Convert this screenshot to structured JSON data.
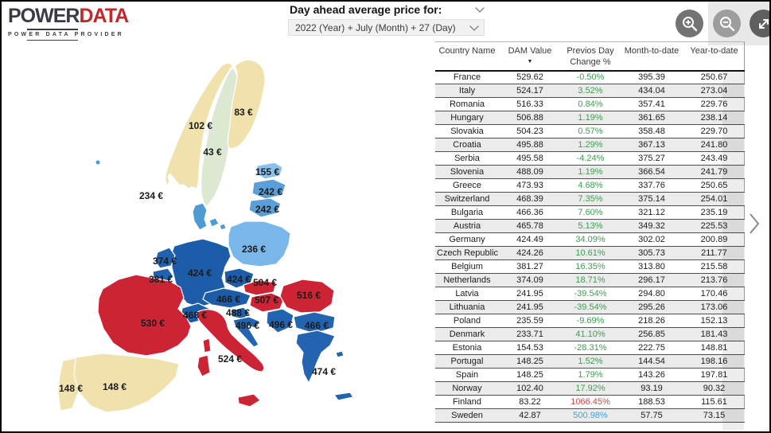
{
  "logo": {
    "brand_bold": "POWER",
    "brand_accent": "DATA",
    "tagline": "POWER DATA PROVIDER"
  },
  "slicer": {
    "title": "Day ahead average price for:",
    "value": "2022 (Year) + July (Month) + 27 (Day)"
  },
  "toolbar": {
    "icons": {
      "zoom_in": "magnifier-plus",
      "zoom_out": "magnifier-minus",
      "expand": "expand-arrows"
    }
  },
  "palette": {
    "green": "#3f9c51",
    "red": "#cd4a4a",
    "blue": "#3fa2dc"
  },
  "map": {
    "countries": [
      {
        "name": "Norway",
        "label": "102 €",
        "fill": "#f1e2ad"
      },
      {
        "name": "Sweden",
        "label": "43 €",
        "fill": "#dde8d2"
      },
      {
        "name": "Finland",
        "label": "83 €",
        "fill": "#f1e2ad"
      },
      {
        "name": "Denmark",
        "label": "234 €",
        "fill": "#4e9ad3"
      },
      {
        "name": "Estonia",
        "label": "155 €",
        "fill": "#8ac2ee"
      },
      {
        "name": "Latvia",
        "label": "242 €",
        "fill": "#5b9fd8"
      },
      {
        "name": "Lithuania",
        "label": "242 €",
        "fill": "#5b9fd8"
      },
      {
        "name": "Poland",
        "label": "236 €",
        "fill": "#79b7ea"
      },
      {
        "name": "Netherlands",
        "label": "374 €",
        "fill": "#2062ae"
      },
      {
        "name": "Belgium",
        "label": "381 €",
        "fill": "#2062ae"
      },
      {
        "name": "Germany",
        "label": "424 €",
        "fill": "#1d5ca8"
      },
      {
        "name": "Czech Republic",
        "label": "424 €",
        "fill": "#1d5ca8"
      },
      {
        "name": "Slovakia",
        "label": "504 €",
        "fill": "#cc2434"
      },
      {
        "name": "Hungary",
        "label": "507 €",
        "fill": "#cc2434"
      },
      {
        "name": "Romania",
        "label": "516 €",
        "fill": "#cc2434"
      },
      {
        "name": "Austria",
        "label": "466 €",
        "fill": "#1d5ca8"
      },
      {
        "name": "Switzerland",
        "label": "468 €",
        "fill": "#1d5ca8"
      },
      {
        "name": "Slovenia",
        "label": "488 €",
        "fill": "#2062ae"
      },
      {
        "name": "Croatia",
        "label": "496 €",
        "fill": "#2264b0"
      },
      {
        "name": "Serbia",
        "label": "496 €",
        "fill": "#2264b0"
      },
      {
        "name": "Bulgaria",
        "label": "466 €",
        "fill": "#2264b0"
      },
      {
        "name": "France",
        "label": "530 €",
        "fill": "#cc2434"
      },
      {
        "name": "Italy",
        "label": "524 €",
        "fill": "#cc2434"
      },
      {
        "name": "Greece",
        "label": "474 €",
        "fill": "#2264b0"
      },
      {
        "name": "Spain",
        "label": "148 €",
        "fill": "#f1e2ad"
      },
      {
        "name": "Portugal",
        "label": "148 €",
        "fill": "#f1e2ad"
      }
    ]
  },
  "table": {
    "columns": [
      "Country Name",
      "DAM Value",
      "Previos Day Change %",
      "Month-to-date",
      "Year-to-date"
    ],
    "sort_icon": "▼",
    "rows": [
      {
        "country": "France",
        "dam": "529.62",
        "change": "-0.50%",
        "change_color": "green",
        "mtd": "395.39",
        "ytd": "250.67"
      },
      {
        "country": "Italy",
        "dam": "524.17",
        "change": "3.52%",
        "change_color": "green",
        "mtd": "434.04",
        "ytd": "273.04"
      },
      {
        "country": "Romania",
        "dam": "516.33",
        "change": "0.84%",
        "change_color": "green",
        "mtd": "357.41",
        "ytd": "229.76"
      },
      {
        "country": "Hungary",
        "dam": "506.88",
        "change": "1.19%",
        "change_color": "green",
        "mtd": "361.65",
        "ytd": "238.14"
      },
      {
        "country": "Slovakia",
        "dam": "504.23",
        "change": "0.57%",
        "change_color": "green",
        "mtd": "358.48",
        "ytd": "229.70"
      },
      {
        "country": "Croatia",
        "dam": "495.88",
        "change": "1.29%",
        "change_color": "green",
        "mtd": "367.13",
        "ytd": "241.80"
      },
      {
        "country": "Serbia",
        "dam": "495.58",
        "change": "-4.24%",
        "change_color": "green",
        "mtd": "375.27",
        "ytd": "243.49"
      },
      {
        "country": "Slovenia",
        "dam": "488.09",
        "change": "1.19%",
        "change_color": "green",
        "mtd": "366.54",
        "ytd": "241.79"
      },
      {
        "country": "Greece",
        "dam": "473.93",
        "change": "4.68%",
        "change_color": "green",
        "mtd": "337.76",
        "ytd": "250.65"
      },
      {
        "country": "Switzerland",
        "dam": "468.39",
        "change": "7.35%",
        "change_color": "green",
        "mtd": "375.14",
        "ytd": "254.01"
      },
      {
        "country": "Bulgaria",
        "dam": "466.36",
        "change": "7.60%",
        "change_color": "green",
        "mtd": "321.12",
        "ytd": "235.19"
      },
      {
        "country": "Austria",
        "dam": "465.78",
        "change": "5.13%",
        "change_color": "green",
        "mtd": "349.32",
        "ytd": "225.53"
      },
      {
        "country": "Germany",
        "dam": "424.49",
        "change": "34.09%",
        "change_color": "green",
        "mtd": "302.02",
        "ytd": "200.89"
      },
      {
        "country": "Czech Republic",
        "dam": "424.26",
        "change": "10.61%",
        "change_color": "green",
        "mtd": "305.73",
        "ytd": "211.77"
      },
      {
        "country": "Belgium",
        "dam": "381.27",
        "change": "16.35%",
        "change_color": "green",
        "mtd": "313.80",
        "ytd": "215.58"
      },
      {
        "country": "Netherlands",
        "dam": "374.09",
        "change": "18.71%",
        "change_color": "green",
        "mtd": "296.17",
        "ytd": "213.76"
      },
      {
        "country": "Latvia",
        "dam": "241.95",
        "change": "-39.54%",
        "change_color": "green",
        "mtd": "294.80",
        "ytd": "170.46"
      },
      {
        "country": "Lithuania",
        "dam": "241.95",
        "change": "-39.54%",
        "change_color": "green",
        "mtd": "295.26",
        "ytd": "173.06"
      },
      {
        "country": "Poland",
        "dam": "235.59",
        "change": "-9.69%",
        "change_color": "green",
        "mtd": "218.26",
        "ytd": "152.13"
      },
      {
        "country": "Denmark",
        "dam": "233.71",
        "change": "41.10%",
        "change_color": "green",
        "mtd": "256.85",
        "ytd": "181.43"
      },
      {
        "country": "Estonia",
        "dam": "154.53",
        "change": "-28.31%",
        "change_color": "green",
        "mtd": "222.75",
        "ytd": "148.81"
      },
      {
        "country": "Portugal",
        "dam": "148.25",
        "change": "1.52%",
        "change_color": "green",
        "mtd": "144.54",
        "ytd": "198.16"
      },
      {
        "country": "Spain",
        "dam": "148.25",
        "change": "1.79%",
        "change_color": "green",
        "mtd": "143.26",
        "ytd": "197.81"
      },
      {
        "country": "Norway",
        "dam": "102.40",
        "change": "17.92%",
        "change_color": "green",
        "mtd": "93.19",
        "ytd": "90.32"
      },
      {
        "country": "Finland",
        "dam": "83.22",
        "change": "1066.45%",
        "change_color": "red",
        "mtd": "188.53",
        "ytd": "115.61"
      },
      {
        "country": "Sweden",
        "dam": "42.87",
        "change": "500.98%",
        "change_color": "blue",
        "mtd": "57.75",
        "ytd": "73.15"
      }
    ]
  }
}
